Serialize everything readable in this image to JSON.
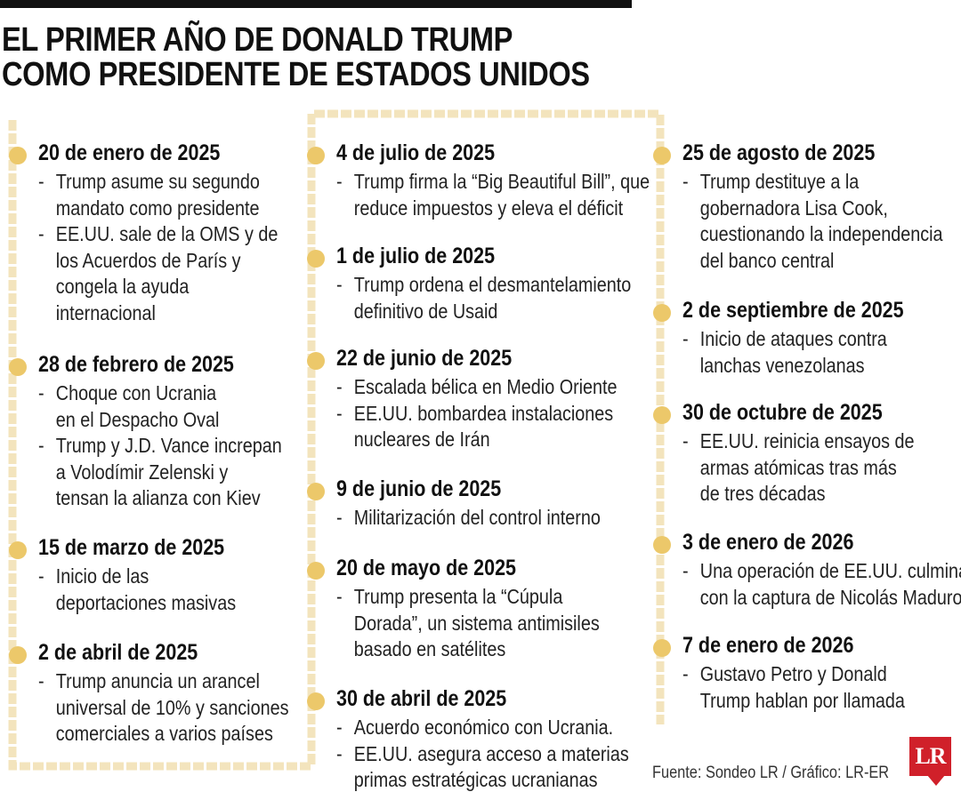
{
  "header": {
    "title_line1": "EL PRIMER AÑO DE DONALD TRUMP",
    "title_line2": "COMO PRESIDENTE DE ESTADOS UNIDOS"
  },
  "colors": {
    "accent": "#ecc86a",
    "rail": "#f3e4bd",
    "text": "#111111",
    "logo": "#d0202a"
  },
  "columns": [
    {
      "events": [
        {
          "date": "20 de enero de 2025",
          "items": [
            [
              "Trump asume su segundo",
              "mandato como presidente"
            ],
            [
              "EE.UU. sale de la OMS y de",
              "los Acuerdos de París y",
              "congela la ayuda",
              "internacional"
            ]
          ]
        },
        {
          "date": "28 de febrero de 2025",
          "items": [
            [
              "Choque con Ucrania",
              "en el Despacho Oval"
            ],
            [
              "Trump y J.D. Vance increpan",
              "a Volodímir Zelenski y",
              "tensan la alianza con Kiev"
            ]
          ]
        },
        {
          "date": "15 de marzo de 2025",
          "items": [
            [
              "Inicio de las",
              "deportaciones masivas"
            ]
          ]
        },
        {
          "date": "2 de abril de 2025",
          "items": [
            [
              "Trump anuncia un arancel",
              "universal de 10% y sanciones",
              "comerciales a varios países"
            ]
          ]
        }
      ]
    },
    {
      "events": [
        {
          "date": "4 de julio de 2025",
          "items": [
            [
              "Trump firma la “Big Beautiful Bill”, que",
              "reduce impuestos y eleva el déficit"
            ]
          ]
        },
        {
          "date": "1 de julio de 2025",
          "items": [
            [
              "Trump ordena el desmantelamiento",
              "definitivo de Usaid"
            ]
          ]
        },
        {
          "date": "22 de junio de 2025",
          "items": [
            [
              "Escalada bélica en Medio Oriente"
            ],
            [
              "EE.UU. bombardea instalaciones",
              "nucleares de Irán"
            ]
          ]
        },
        {
          "date": "9 de junio de 2025",
          "items": [
            [
              "Militarización del control interno"
            ]
          ]
        },
        {
          "date": "20 de mayo de 2025",
          "items": [
            [
              "Trump presenta la “Cúpula",
              "Dorada”, un sistema antimisiles",
              "basado en satélites"
            ]
          ]
        },
        {
          "date": "30 de abril de 2025",
          "items": [
            [
              "Acuerdo económico con Ucrania."
            ],
            [
              "EE.UU. asegura acceso a materias",
              "primas estratégicas ucranianas"
            ]
          ]
        }
      ]
    },
    {
      "events": [
        {
          "date": "25 de agosto de 2025",
          "items": [
            [
              "Trump destituye a la",
              "gobernadora Lisa Cook,",
              "cuestionando la independencia",
              "del banco central"
            ]
          ]
        },
        {
          "date": "2 de septiembre de 2025",
          "items": [
            [
              "Inicio de ataques contra",
              "lanchas venezolanas"
            ]
          ]
        },
        {
          "date": "30 de octubre de 2025",
          "items": [
            [
              "EE.UU. reinicia ensayos de",
              "armas atómicas tras más",
              "de tres décadas"
            ]
          ]
        },
        {
          "date": "3 de enero de 2026",
          "items": [
            [
              "Una operación de EE.UU. culmina",
              "con la captura de Nicolás Maduro"
            ]
          ]
        },
        {
          "date": "7 de enero de 2026",
          "items": [
            [
              "Gustavo Petro y Donald",
              "Trump hablan por llamada"
            ]
          ]
        }
      ]
    }
  ],
  "footer": {
    "source": "Fuente: Sondeo LR / Gráfico: LR-ER",
    "logo_text": "LR"
  }
}
